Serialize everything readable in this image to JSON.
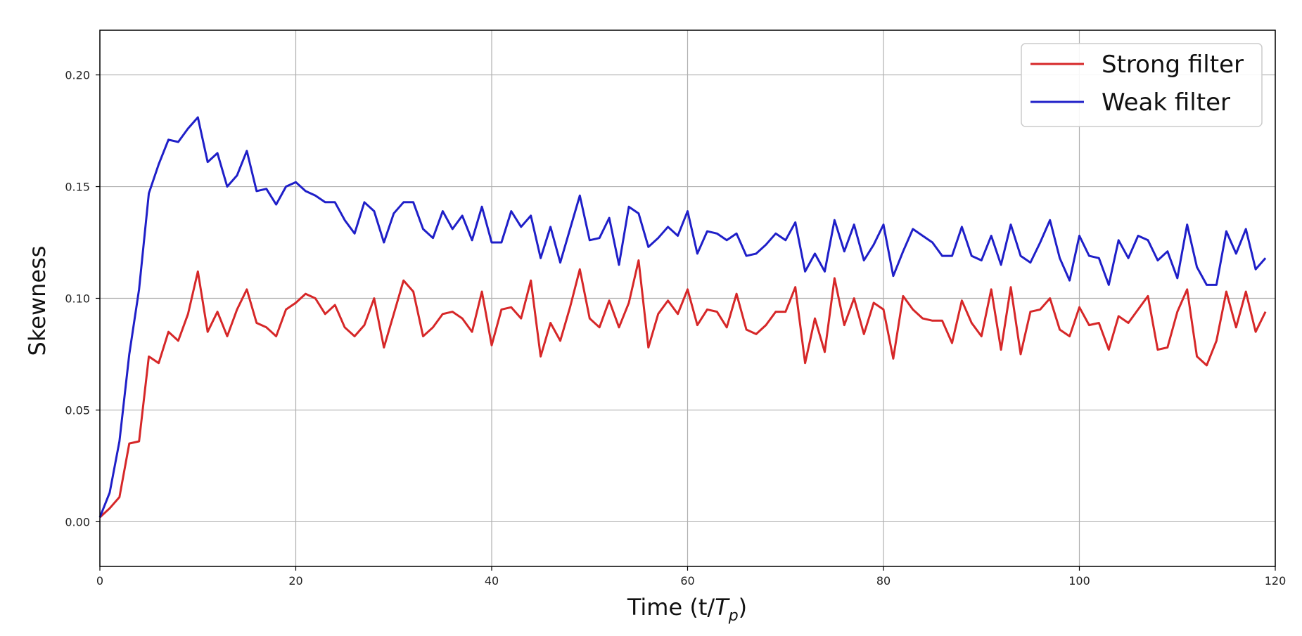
{
  "chart_data": {
    "type": "line",
    "xlabel_prefix": "Time (t/",
    "xlabel_var": "T",
    "xlabel_sub": "p",
    "xlabel_suffix": ")",
    "ylabel": "Skewness",
    "xlim": [
      0,
      120
    ],
    "ylim": [
      -0.02,
      0.22
    ],
    "xticks": [
      0,
      20,
      40,
      60,
      80,
      100,
      120
    ],
    "yticks": [
      0.0,
      0.05,
      0.1,
      0.15,
      0.2
    ],
    "xtick_labels": [
      "0",
      "20",
      "40",
      "60",
      "80",
      "100",
      "120"
    ],
    "ytick_labels": [
      "0.00",
      "0.05",
      "0.10",
      "0.15",
      "0.20"
    ],
    "grid": true,
    "legend_position": "top-right",
    "x": [
      0,
      1,
      2,
      3,
      4,
      5,
      6,
      7,
      8,
      9,
      10,
      11,
      12,
      13,
      14,
      15,
      16,
      17,
      18,
      19,
      20,
      21,
      22,
      23,
      24,
      25,
      26,
      27,
      28,
      29,
      30,
      31,
      32,
      33,
      34,
      35,
      36,
      37,
      38,
      39,
      40,
      41,
      42,
      43,
      44,
      45,
      46,
      47,
      48,
      49,
      50,
      51,
      52,
      53,
      54,
      55,
      56,
      57,
      58,
      59,
      60,
      61,
      62,
      63,
      64,
      65,
      66,
      67,
      68,
      69,
      70,
      71,
      72,
      73,
      74,
      75,
      76,
      77,
      78,
      79,
      80,
      81,
      82,
      83,
      84,
      85,
      86,
      87,
      88,
      89,
      90,
      91,
      92,
      93,
      94,
      95,
      96,
      97,
      98,
      99,
      100,
      101,
      102,
      103,
      104,
      105,
      106,
      107,
      108,
      109,
      110,
      111,
      112,
      113,
      114,
      115,
      116,
      117,
      118,
      119
    ],
    "series": [
      {
        "name": "Strong filter",
        "color": "#d62728",
        "values": [
          0.002,
          0.006,
          0.011,
          0.035,
          0.036,
          0.074,
          0.071,
          0.085,
          0.081,
          0.093,
          0.112,
          0.085,
          0.094,
          0.083,
          0.095,
          0.104,
          0.089,
          0.087,
          0.083,
          0.095,
          0.098,
          0.102,
          0.1,
          0.093,
          0.097,
          0.087,
          0.083,
          0.088,
          0.1,
          0.078,
          0.093,
          0.108,
          0.103,
          0.083,
          0.087,
          0.093,
          0.094,
          0.091,
          0.085,
          0.103,
          0.079,
          0.095,
          0.096,
          0.091,
          0.108,
          0.074,
          0.089,
          0.081,
          0.096,
          0.113,
          0.091,
          0.087,
          0.099,
          0.087,
          0.098,
          0.117,
          0.078,
          0.093,
          0.099,
          0.093,
          0.104,
          0.088,
          0.095,
          0.094,
          0.087,
          0.102,
          0.086,
          0.084,
          0.088,
          0.094,
          0.094,
          0.105,
          0.071,
          0.091,
          0.076,
          0.109,
          0.088,
          0.1,
          0.084,
          0.098,
          0.095,
          0.073,
          0.101,
          0.095,
          0.091,
          0.09,
          0.09,
          0.08,
          0.099,
          0.089,
          0.083,
          0.104,
          0.077,
          0.105,
          0.075,
          0.094,
          0.095,
          0.1,
          0.086,
          0.083,
          0.096,
          0.088,
          0.089,
          0.077,
          0.092,
          0.089,
          0.095,
          0.101,
          0.077,
          0.078,
          0.094,
          0.104,
          0.074,
          0.07,
          0.081,
          0.103,
          0.087,
          0.103,
          0.085,
          0.094
        ]
      },
      {
        "name": "Weak filter",
        "color": "#1f1fc8",
        "values": [
          0.002,
          0.013,
          0.036,
          0.075,
          0.104,
          0.147,
          0.16,
          0.171,
          0.17,
          0.176,
          0.181,
          0.161,
          0.165,
          0.15,
          0.155,
          0.166,
          0.148,
          0.149,
          0.142,
          0.15,
          0.152,
          0.148,
          0.146,
          0.143,
          0.143,
          0.135,
          0.129,
          0.143,
          0.139,
          0.125,
          0.138,
          0.143,
          0.143,
          0.131,
          0.127,
          0.139,
          0.131,
          0.137,
          0.126,
          0.141,
          0.125,
          0.125,
          0.139,
          0.132,
          0.137,
          0.118,
          0.132,
          0.116,
          0.131,
          0.146,
          0.126,
          0.127,
          0.136,
          0.115,
          0.141,
          0.138,
          0.123,
          0.127,
          0.132,
          0.128,
          0.139,
          0.12,
          0.13,
          0.129,
          0.126,
          0.129,
          0.119,
          0.12,
          0.124,
          0.129,
          0.126,
          0.134,
          0.112,
          0.12,
          0.112,
          0.135,
          0.121,
          0.133,
          0.117,
          0.124,
          0.133,
          0.11,
          0.121,
          0.131,
          0.128,
          0.125,
          0.119,
          0.119,
          0.132,
          0.119,
          0.117,
          0.128,
          0.115,
          0.133,
          0.119,
          0.116,
          0.125,
          0.135,
          0.118,
          0.108,
          0.128,
          0.119,
          0.118,
          0.106,
          0.126,
          0.118,
          0.128,
          0.126,
          0.117,
          0.121,
          0.109,
          0.133,
          0.114,
          0.106,
          0.106,
          0.13,
          0.12,
          0.131,
          0.113,
          0.118
        ]
      }
    ]
  }
}
